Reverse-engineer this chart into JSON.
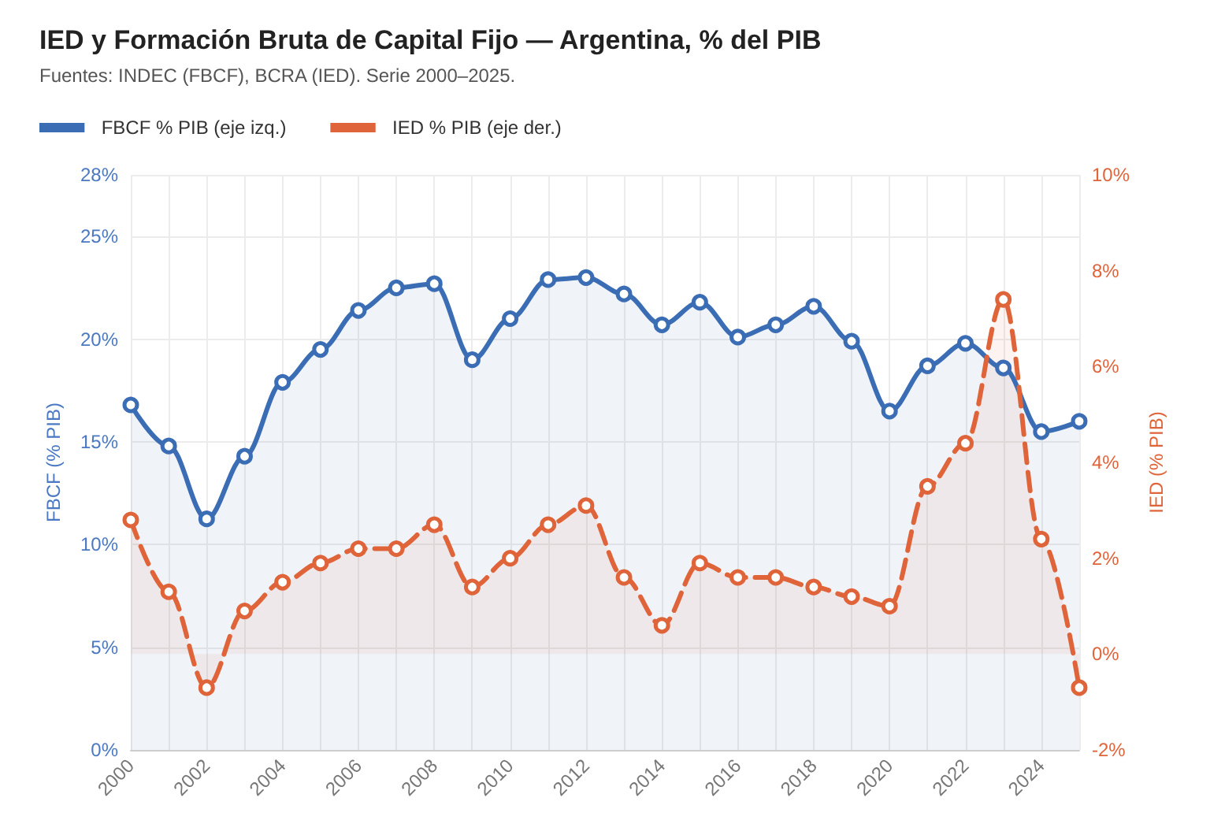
{
  "chart_data": {
    "type": "area",
    "title": "IED y Formación Bruta de Capital Fijo — Argentina, % del PIB",
    "subtitle": "Fuentes: INDEC (FBCF), BCRA (IED). Serie 2000–2025.",
    "ylabel": "FBCF (% PIB)",
    "y2label": "IED (% PIB)",
    "categories": [
      "2000",
      null,
      "2002",
      null,
      "2004",
      null,
      "2006",
      null,
      "2008",
      null,
      "2010",
      null,
      "2012",
      null,
      "2014",
      null,
      "2016",
      null,
      "2018",
      null,
      "2020",
      null,
      "2022",
      null,
      "2024",
      null
    ],
    "series": [
      {
        "name": "FBCF % PIB (eje izq.)",
        "color": "#3b6db5",
        "line_style": "solid",
        "values": [
          16.8,
          14.8,
          11.25,
          14.3,
          17.9,
          19.5,
          21.4,
          22.5,
          22.7,
          19.0,
          21.0,
          22.9,
          23.0,
          22.2,
          20.7,
          21.8,
          20.1,
          20.7,
          21.6,
          19.9,
          16.5,
          18.7,
          19.8,
          18.6,
          15.5,
          16.0
        ]
      },
      {
        "name": "IED % PIB (eje der.)",
        "axis": "y2",
        "color": "#e0643a",
        "line_style": "dashed",
        "values": [
          2.8,
          1.3,
          -0.7,
          0.9,
          1.5,
          1.9,
          2.2,
          2.2,
          2.7,
          1.4,
          2.0,
          2.7,
          3.1,
          1.6,
          0.6,
          1.9,
          1.6,
          1.6,
          1.4,
          1.2,
          1.0,
          3.5,
          4.4,
          7.4,
          2.4,
          -0.7
        ]
      }
    ],
    "ylim": [
      0,
      28
    ],
    "yticks": [
      {
        "value": 0,
        "label": "0%"
      },
      {
        "value": 5,
        "label": "5%"
      },
      {
        "value": 10,
        "label": "10%"
      },
      {
        "value": 15,
        "label": "15%"
      },
      {
        "value": 20,
        "label": "20%"
      },
      {
        "value": 25,
        "label": "25%"
      },
      {
        "value": 28,
        "label": "28%"
      }
    ],
    "y2lim": [
      -2,
      10
    ],
    "y2ticks": [
      {
        "value": -2,
        "label": "-2%"
      },
      {
        "value": 0,
        "label": "0%"
      },
      {
        "value": 2,
        "label": "2%"
      },
      {
        "value": 4,
        "label": "4%"
      },
      {
        "value": 6,
        "label": "6%"
      },
      {
        "value": 8,
        "label": "8%"
      },
      {
        "value": 10,
        "label": "10%"
      }
    ],
    "grid": true,
    "legend": "top left",
    "marker": "circle"
  }
}
